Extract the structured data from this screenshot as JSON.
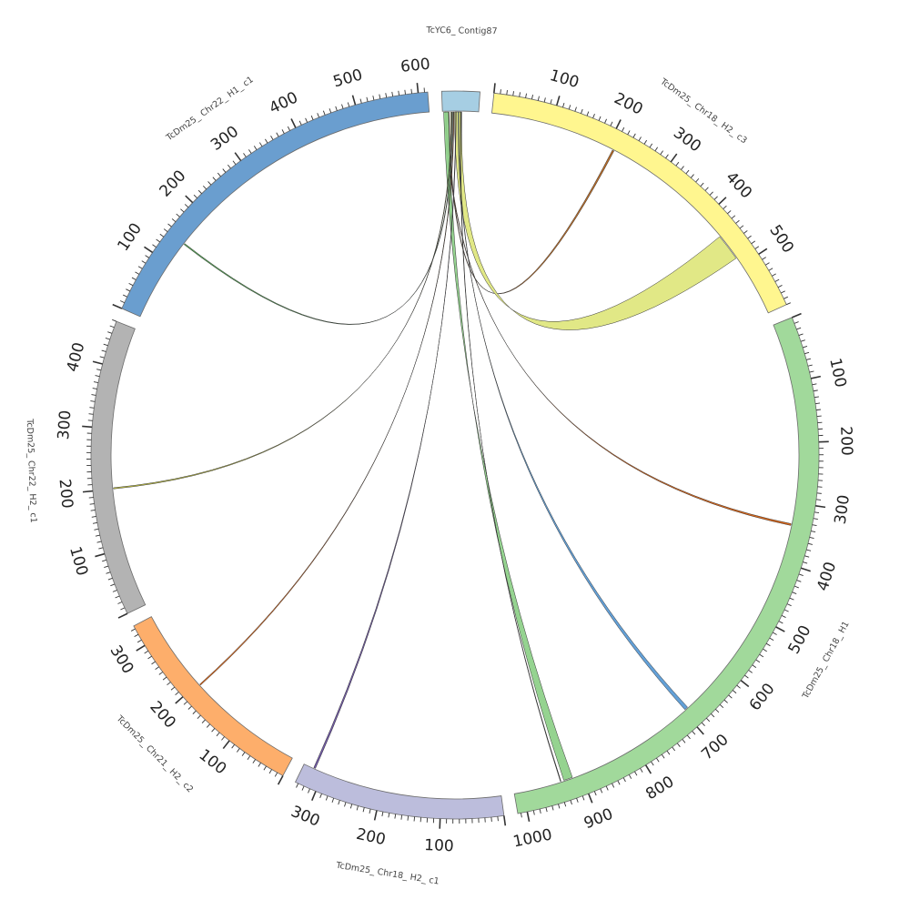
{
  "diagram_type": "circos",
  "segments": [
    {
      "id": "contig87",
      "label": "TcYC6_ Contig87",
      "length": 60,
      "color": "#a6cee3",
      "ticks": []
    },
    {
      "id": "chr18h2c3",
      "label": "TcDm25_ Chr18_ H2_ c3",
      "length": 590,
      "color": "#fff68f",
      "ticks": [
        100,
        200,
        300,
        400,
        500
      ]
    },
    {
      "id": "chr18h1",
      "label": "TcDm25_ Chr18_ H1",
      "length": 1015,
      "color": "#a1d99b",
      "ticks": [
        100,
        200,
        300,
        400,
        500,
        600,
        700,
        800,
        900,
        1000
      ]
    },
    {
      "id": "chr18h2c1",
      "label": "TcDm25_ Chr18_ H2_ c1",
      "length": 335,
      "color": "#bcbddc",
      "ticks": [
        100,
        200,
        300
      ]
    },
    {
      "id": "chr21h2c2",
      "label": "TcDm25_ Chr21_ H2_ c2",
      "length": 335,
      "color": "#fdae6b",
      "ticks": [
        100,
        200,
        300
      ]
    },
    {
      "id": "chr22h2c1",
      "label": "TcDm25_ Chr22_ H2_ c1",
      "length": 470,
      "color": "#b3b3b3",
      "ticks": [
        100,
        200,
        300,
        400
      ]
    },
    {
      "id": "chr22h1c1",
      "label": "TcDm25_ Chr22_ H1_ c1",
      "length": 615,
      "color": "#6a9ecf",
      "ticks": [
        100,
        200,
        300,
        400,
        500,
        600
      ]
    }
  ],
  "links": [
    {
      "from": "contig87",
      "from_pos": 10,
      "from_width": 1,
      "to": "chr18h2c3",
      "to_pos": 210,
      "to_width": 3,
      "color": "#b5651d"
    },
    {
      "from": "contig87",
      "from_pos": 20,
      "from_width": 12,
      "to": "chr18h2c3",
      "to_pos": 440,
      "to_width": 45,
      "color": "#dfe77f"
    },
    {
      "from": "contig87",
      "from_pos": 5,
      "from_width": 1,
      "to": "chr18h1",
      "to_pos": 335,
      "to_width": 3,
      "color": "#d95f0e"
    },
    {
      "from": "contig87",
      "from_pos": 26,
      "from_width": 1,
      "to": "chr18h1",
      "to_pos": 690,
      "to_width": 6,
      "color": "#5b9bd5"
    },
    {
      "from": "contig87",
      "from_pos": 2,
      "from_width": 8,
      "to": "chr18h1",
      "to_pos": 915,
      "to_width": 15,
      "color": "#8fd18a"
    },
    {
      "from": "contig87",
      "from_pos": 30,
      "from_width": 1,
      "to": "chr18h1",
      "to_pos": 935,
      "to_width": 1,
      "color": "#222222"
    },
    {
      "from": "contig87",
      "from_pos": 22,
      "from_width": 1,
      "to": "chr18h2c1",
      "to_pos": 315,
      "to_width": 3,
      "color": "#6a51a3"
    },
    {
      "from": "contig87",
      "from_pos": 18,
      "from_width": 1,
      "to": "chr21h2c2",
      "to_pos": 195,
      "to_width": 2,
      "color": "#d95f0e"
    },
    {
      "from": "contig87",
      "from_pos": 14,
      "from_width": 1,
      "to": "chr22h2c1",
      "to_pos": 200,
      "to_width": 2,
      "color": "#c7c83a"
    },
    {
      "from": "contig87",
      "from_pos": 16,
      "from_width": 1,
      "to": "chr22h1c1",
      "to_pos": 140,
      "to_width": 2,
      "color": "#4a9e4a"
    }
  ]
}
